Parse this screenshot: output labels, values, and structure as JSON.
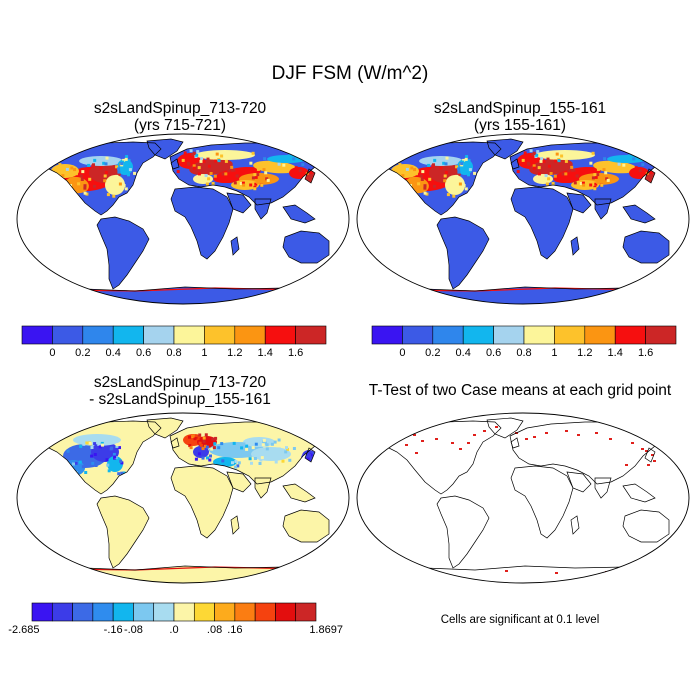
{
  "figure": {
    "title": "DJF FSM (W/m^2)"
  },
  "panels": [
    {
      "title_line1": "s2sLandSpinup_713-720",
      "title_line2": "(yrs 715-721)"
    },
    {
      "title_line1": "s2sLandSpinup_155-161",
      "title_line2": "(yrs 155-161)"
    },
    {
      "title_line1": "s2sLandSpinup_713-720",
      "title_line2": "- s2sLandSpinup_155-161"
    },
    {
      "title_line1": "T-Test of two Case means at each grid point",
      "title_line2": ""
    }
  ],
  "colorbar_main": {
    "colors": [
      "#3a14f2",
      "#3c5ae6",
      "#2f86ec",
      "#12b6ee",
      "#a5d3ee",
      "#fcf59a",
      "#fdc22b",
      "#fb9512",
      "#f60f0f",
      "#cc2626"
    ],
    "labels": [
      "0",
      "0.2",
      "0.4",
      "0.6",
      "0.8",
      "1",
      "1.2",
      "1.4",
      "1.6"
    ]
  },
  "colorbar_diff": {
    "colors": [
      "#3a14f2",
      "#3c3ce8",
      "#3c6ae6",
      "#2f8cee",
      "#12b6ee",
      "#7cc8f0",
      "#a8dcf0",
      "#fcf5a8",
      "#fdd835",
      "#fdab1c",
      "#fb7d12",
      "#f5420f",
      "#e30e0e",
      "#cc2626"
    ],
    "labels": [
      "-2.685",
      "-.16",
      "-.08",
      ".0",
      ".08",
      ".16",
      "1.8697"
    ]
  },
  "ttest_note": "Cells are significant at 0.1 level",
  "chart_data": {
    "type": "heatmap",
    "title": "DJF FSM (W/m^2)",
    "maps": [
      {
        "title": "s2sLandSpinup_713-720 (yrs 715-721)",
        "levels": [
          0,
          0.2,
          0.4,
          0.6,
          0.8,
          1,
          1.2,
          1.4,
          1.6
        ]
      },
      {
        "title": "s2sLandSpinup_155-161 (yrs 155-161)",
        "levels": [
          0,
          0.2,
          0.4,
          0.6,
          0.8,
          1,
          1.2,
          1.4,
          1.6
        ]
      },
      {
        "title": "s2sLandSpinup_713-720 - s2sLandSpinup_155-161",
        "levels": [
          -0.16,
          -0.08,
          0,
          0.08,
          0.16
        ],
        "min": -2.685,
        "max": 1.8697
      },
      {
        "title": "T-Test of two Case means at each grid point",
        "significance_level": 0.1
      }
    ]
  }
}
